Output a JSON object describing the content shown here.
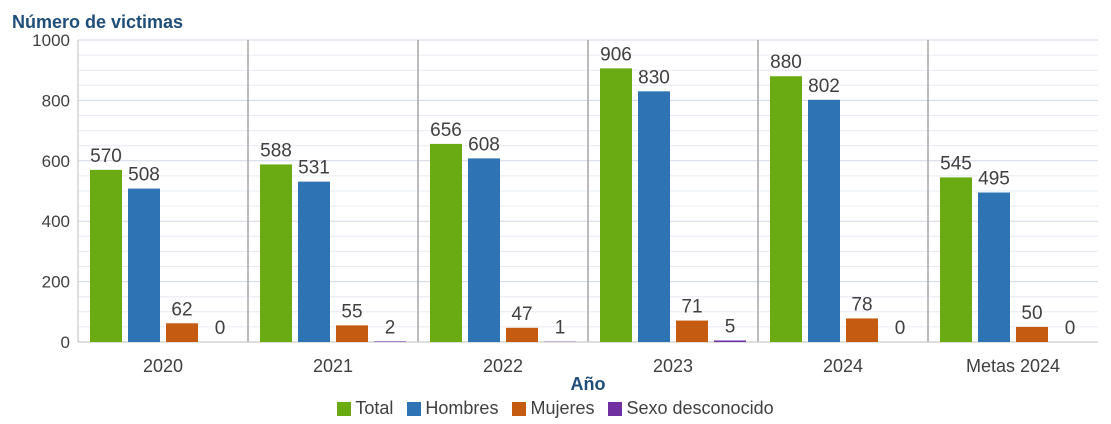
{
  "chart_data": {
    "type": "bar",
    "ylabel": "Número de victimas",
    "xlabel": "Año",
    "ylim": [
      0,
      1000
    ],
    "yticks": [
      0,
      200,
      400,
      600,
      800,
      1000
    ],
    "grid": true,
    "legend_position": "bottom",
    "categories": [
      "2020",
      "2021",
      "2022",
      "2023",
      "2024",
      "Metas 2024"
    ],
    "series": [
      {
        "name": "Total",
        "color": "#6aaa12",
        "values": [
          570,
          588,
          656,
          906,
          880,
          545
        ]
      },
      {
        "name": "Hombres",
        "color": "#2e74b5",
        "values": [
          508,
          531,
          608,
          830,
          802,
          495
        ]
      },
      {
        "name": "Mujeres",
        "color": "#c55a11",
        "values": [
          62,
          55,
          47,
          71,
          78,
          50
        ]
      },
      {
        "name": "Sexo desconocido",
        "color": "#7030a0",
        "values": [
          0,
          2,
          1,
          5,
          0,
          0
        ]
      }
    ]
  }
}
